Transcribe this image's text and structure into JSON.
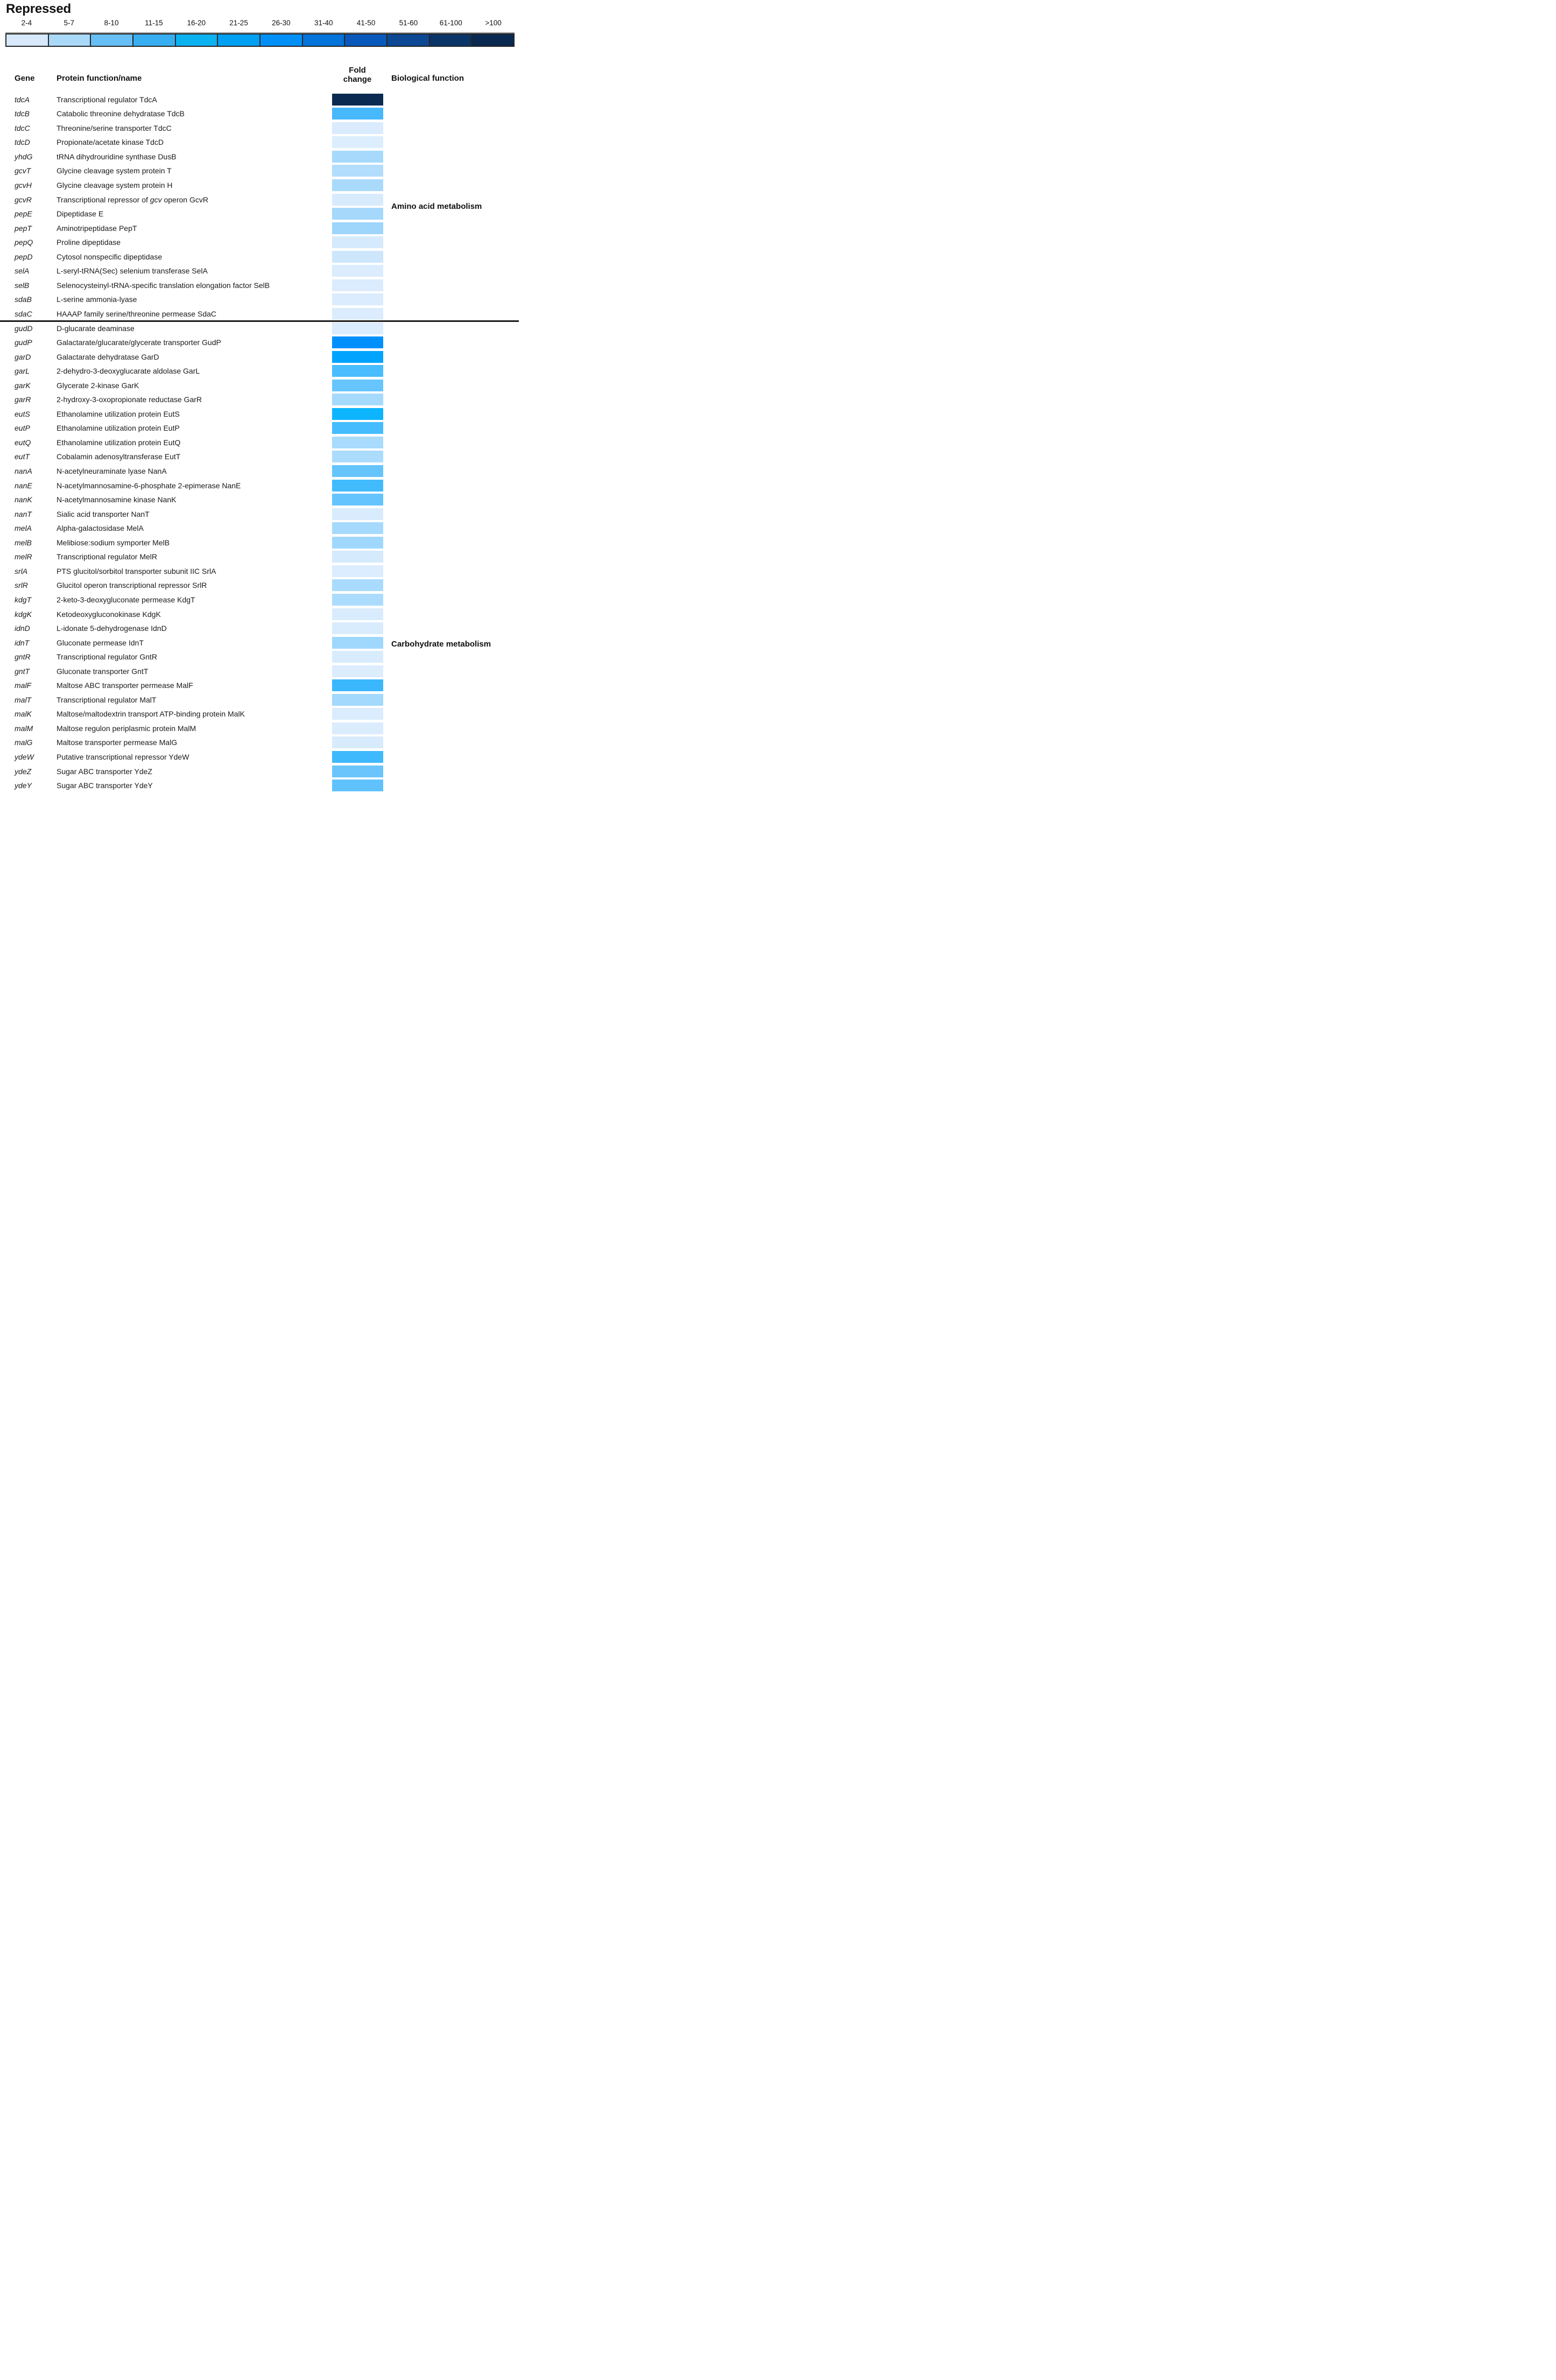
{
  "title": "Repressed",
  "columns": {
    "gene": "Gene",
    "protein": "Protein function/name",
    "fold_change": "Fold change",
    "bio": "Biological function"
  },
  "chart_data": {
    "type": "heatmap",
    "title": "Repressed",
    "value_label": "Fold change",
    "legend_bins": [
      {
        "label": "2-4",
        "color": "#d7e9fa"
      },
      {
        "label": "5-7",
        "color": "#aad9f8"
      },
      {
        "label": "8-10",
        "color": "#68bff5"
      },
      {
        "label": "11-15",
        "color": "#38aef2"
      },
      {
        "label": "16-20",
        "color": "#0cb2f0"
      },
      {
        "label": "21-25",
        "color": "#02a0f2"
      },
      {
        "label": "26-30",
        "color": "#0090f8"
      },
      {
        "label": "31-40",
        "color": "#0473da"
      },
      {
        "label": "41-50",
        "color": "#0959bc"
      },
      {
        "label": "51-60",
        "color": "#0c4894"
      },
      {
        "label": "61-100",
        "color": "#0b3568"
      },
      {
        "label": ">100",
        "color": "#0a2950"
      }
    ],
    "groups": [
      "Amino acid metabolism",
      "Carbohydrate metabolism"
    ],
    "rows": [
      {
        "gene": "tdcA",
        "protein": "Transcriptional regulator TdcA",
        "fold_bin": ">100",
        "color": "#0a2a52",
        "group": "Amino acid metabolism"
      },
      {
        "gene": "tdcB",
        "protein": "Catabolic threonine dehydratase TdcB",
        "fold_bin": "11-15",
        "color": "#47b8fc",
        "group": "Amino acid metabolism"
      },
      {
        "gene": "tdcC",
        "protein": "Threonine/serine transporter TdcC",
        "fold_bin": "2-4",
        "color": "#d9ebfd",
        "group": "Amino acid metabolism"
      },
      {
        "gene": "tdcD",
        "protein": "Propionate/acetate kinase TdcD",
        "fold_bin": "2-4",
        "color": "#dcedfd",
        "group": "Amino acid metabolism"
      },
      {
        "gene": "yhdG",
        "protein": "tRNA dihydrouridine synthase DusB",
        "fold_bin": "5-7",
        "color": "#a6d9fc",
        "group": "Amino acid metabolism"
      },
      {
        "gene": "gcvT",
        "protein": "Glycine cleavage system protein T",
        "fold_bin": "5-7",
        "color": "#b3ddfc",
        "group": "Amino acid metabolism"
      },
      {
        "gene": "gcvH",
        "protein": "Glycine cleavage system protein H",
        "fold_bin": "5-7",
        "color": "#a9dafc",
        "group": "Amino acid metabolism"
      },
      {
        "gene": "gcvR",
        "protein": "Transcriptional repressor of gcv operon GcvR",
        "protein_italic_word": "gcv",
        "fold_bin": "2-4",
        "color": "#d8ebfd",
        "group": "Amino acid metabolism"
      },
      {
        "gene": "pepE",
        "protein": "Dipeptidase E",
        "fold_bin": "5-7",
        "color": "#a5d8fb",
        "group": "Amino acid metabolism"
      },
      {
        "gene": "pepT",
        "protein": "Aminotripeptidase PepT",
        "fold_bin": "5-7",
        "color": "#9dd5fb",
        "group": "Amino acid metabolism"
      },
      {
        "gene": "pepQ",
        "protein": "Proline dipeptidase",
        "fold_bin": "2-4",
        "color": "#d5eafc",
        "group": "Amino acid metabolism"
      },
      {
        "gene": "pepD",
        "protein": "Cytosol nonspecific dipeptidase",
        "fold_bin": "2-4",
        "color": "#cde6fb",
        "group": "Amino acid metabolism"
      },
      {
        "gene": "selA",
        "protein": "L-seryl-tRNA(Sec) selenium transferase SelA",
        "fold_bin": "2-4",
        "color": "#daecfd",
        "group": "Amino acid metabolism"
      },
      {
        "gene": "selB",
        "protein": "Selenocysteinyl-tRNA-specific translation elongation factor SelB",
        "fold_bin": "2-4",
        "color": "#daecfd",
        "group": "Amino acid metabolism"
      },
      {
        "gene": "sdaB",
        "protein": "L-serine ammonia-lyase",
        "fold_bin": "2-4",
        "color": "#daecfd",
        "group": "Amino acid metabolism"
      },
      {
        "gene": "sdaC",
        "protein": "HAAAP family serine/threonine permease SdaC",
        "fold_bin": "2-4",
        "color": "#daecfd",
        "group": "Amino acid metabolism"
      },
      {
        "gene": "gudD",
        "protein": "D-glucarate deaminase",
        "fold_bin": "2-4",
        "color": "#daecfd",
        "group": "Carbohydrate metabolism"
      },
      {
        "gene": "gudP",
        "protein": "Galactarate/glucarate/glycerate transporter GudP",
        "fold_bin": "26-30",
        "color": "#0090fe",
        "group": "Carbohydrate metabolism"
      },
      {
        "gene": "garD",
        "protein": "Galactarate dehydratase GarD",
        "fold_bin": "21-25",
        "color": "#00a4fe",
        "group": "Carbohydrate metabolism"
      },
      {
        "gene": "garL",
        "protein": "2-dehydro-3-deoxyglucarate aldolase GarL",
        "fold_bin": "11-15",
        "color": "#49bdfe",
        "group": "Carbohydrate metabolism"
      },
      {
        "gene": "garK",
        "protein": "Glycerate 2-kinase GarK",
        "fold_bin": "8-10",
        "color": "#67c5fe",
        "group": "Carbohydrate metabolism"
      },
      {
        "gene": "garR",
        "protein": "2-hydroxy-3-oxopropionate reductase GarR",
        "fold_bin": "5-7",
        "color": "#a5dafd",
        "group": "Carbohydrate metabolism"
      },
      {
        "gene": "eutS",
        "protein": "Ethanolamine utilization protein EutS",
        "fold_bin": "16-20",
        "color": "#0cb5fd",
        "group": "Carbohydrate metabolism"
      },
      {
        "gene": "eutP",
        "protein": "Ethanolamine utilization protein EutP",
        "fold_bin": "11-15",
        "color": "#44bcfe",
        "group": "Carbohydrate metabolism"
      },
      {
        "gene": "eutQ",
        "protein": "Ethanolamine utilization protein EutQ",
        "fold_bin": "5-7",
        "color": "#a8dbfd",
        "group": "Carbohydrate metabolism"
      },
      {
        "gene": "eutT",
        "protein": "Cobalamin adenosyltransferase EutT",
        "fold_bin": "5-7",
        "color": "#abdcfd",
        "group": "Carbohydrate metabolism"
      },
      {
        "gene": "nanA",
        "protein": "N-acetylneuraminate lyase NanA",
        "fold_bin": "8-10",
        "color": "#66c4fd",
        "group": "Carbohydrate metabolism"
      },
      {
        "gene": "nanE",
        "protein": "N-acetylmannosamine-6-phosphate 2-epimerase NanE",
        "fold_bin": "11-15",
        "color": "#42bbfd",
        "group": "Carbohydrate metabolism"
      },
      {
        "gene": "nanK",
        "protein": "N-acetylmannosamine kinase NanK",
        "fold_bin": "8-10",
        "color": "#65c4fd",
        "group": "Carbohydrate metabolism"
      },
      {
        "gene": "nanT",
        "protein": "Sialic acid transporter NanT",
        "fold_bin": "2-4",
        "color": "#d9ecfd",
        "group": "Carbohydrate metabolism"
      },
      {
        "gene": "melA",
        "protein": "Alpha-galactosidase MelA",
        "fold_bin": "5-7",
        "color": "#a5dafd",
        "group": "Carbohydrate metabolism"
      },
      {
        "gene": "melB",
        "protein": "Melibiose:sodium symporter MelB",
        "fold_bin": "5-7",
        "color": "#a0d8fd",
        "group": "Carbohydrate metabolism"
      },
      {
        "gene": "melR",
        "protein": "Transcriptional regulator MelR",
        "fold_bin": "2-4",
        "color": "#d5eafd",
        "group": "Carbohydrate metabolism"
      },
      {
        "gene": "srlA",
        "protein": "PTS glucitol/sorbitol transporter subunit IIC SrlA",
        "fold_bin": "2-4",
        "color": "#dbedfe",
        "group": "Carbohydrate metabolism"
      },
      {
        "gene": "srlR",
        "protein": "Glucitol operon transcriptional repressor SrlR",
        "fold_bin": "5-7",
        "color": "#a8dbfd",
        "group": "Carbohydrate metabolism"
      },
      {
        "gene": "kdgT",
        "protein": "2-keto-3-deoxygluconate permease KdgT",
        "fold_bin": "5-7",
        "color": "#abdcfd",
        "group": "Carbohydrate metabolism"
      },
      {
        "gene": "kdgK",
        "protein": "Ketodeoxygluconokinase KdgK",
        "fold_bin": "2-4",
        "color": "#d9ecfd",
        "group": "Carbohydrate metabolism"
      },
      {
        "gene": "idnD",
        "protein": "L-idonate 5-dehydrogenase IdnD",
        "fold_bin": "2-4",
        "color": "#d9ecfd",
        "group": "Carbohydrate metabolism"
      },
      {
        "gene": "idnT",
        "protein": "Gluconate permease IdnT",
        "fold_bin": "5-7",
        "color": "#a0d8fd",
        "group": "Carbohydrate metabolism"
      },
      {
        "gene": "gntR",
        "protein": "Transcriptional regulator GntR",
        "fold_bin": "2-4",
        "color": "#d9ecfd",
        "group": "Carbohydrate metabolism"
      },
      {
        "gene": "gntT",
        "protein": "Gluconate transporter GntT",
        "fold_bin": "2-4",
        "color": "#dcedfe",
        "group": "Carbohydrate metabolism"
      },
      {
        "gene": "malF",
        "protein": "Maltose ABC transporter permease MalF",
        "fold_bin": "11-15",
        "color": "#3bb8fd",
        "group": "Carbohydrate metabolism"
      },
      {
        "gene": "malT",
        "protein": "Transcriptional regulator MalT",
        "fold_bin": "5-7",
        "color": "#a2d9fd",
        "group": "Carbohydrate metabolism"
      },
      {
        "gene": "malK",
        "protein": "Maltose/maltodextrin transport ATP-binding protein MalK",
        "fold_bin": "2-4",
        "color": "#daecfd",
        "group": "Carbohydrate metabolism"
      },
      {
        "gene": "malM",
        "protein": "Maltose regulon periplasmic protein MalM",
        "fold_bin": "2-4",
        "color": "#dbecfd",
        "group": "Carbohydrate metabolism"
      },
      {
        "gene": "malG",
        "protein": "Maltose transporter permease MalG",
        "fold_bin": "2-4",
        "color": "#d7ebfd",
        "group": "Carbohydrate metabolism"
      },
      {
        "gene": "ydeW",
        "protein": "Putative transcriptional repressor YdeW",
        "fold_bin": "11-15",
        "color": "#3fb9fd",
        "group": "Carbohydrate metabolism"
      },
      {
        "gene": "ydeZ",
        "protein": "Sugar ABC transporter YdeZ",
        "fold_bin": "8-10",
        "color": "#6ac5fd",
        "group": "Carbohydrate metabolism"
      },
      {
        "gene": "ydeY",
        "protein": "Sugar ABC transporter YdeY",
        "fold_bin": "8-10",
        "color": "#60c2fd",
        "group": "Carbohydrate metabolism"
      }
    ]
  }
}
